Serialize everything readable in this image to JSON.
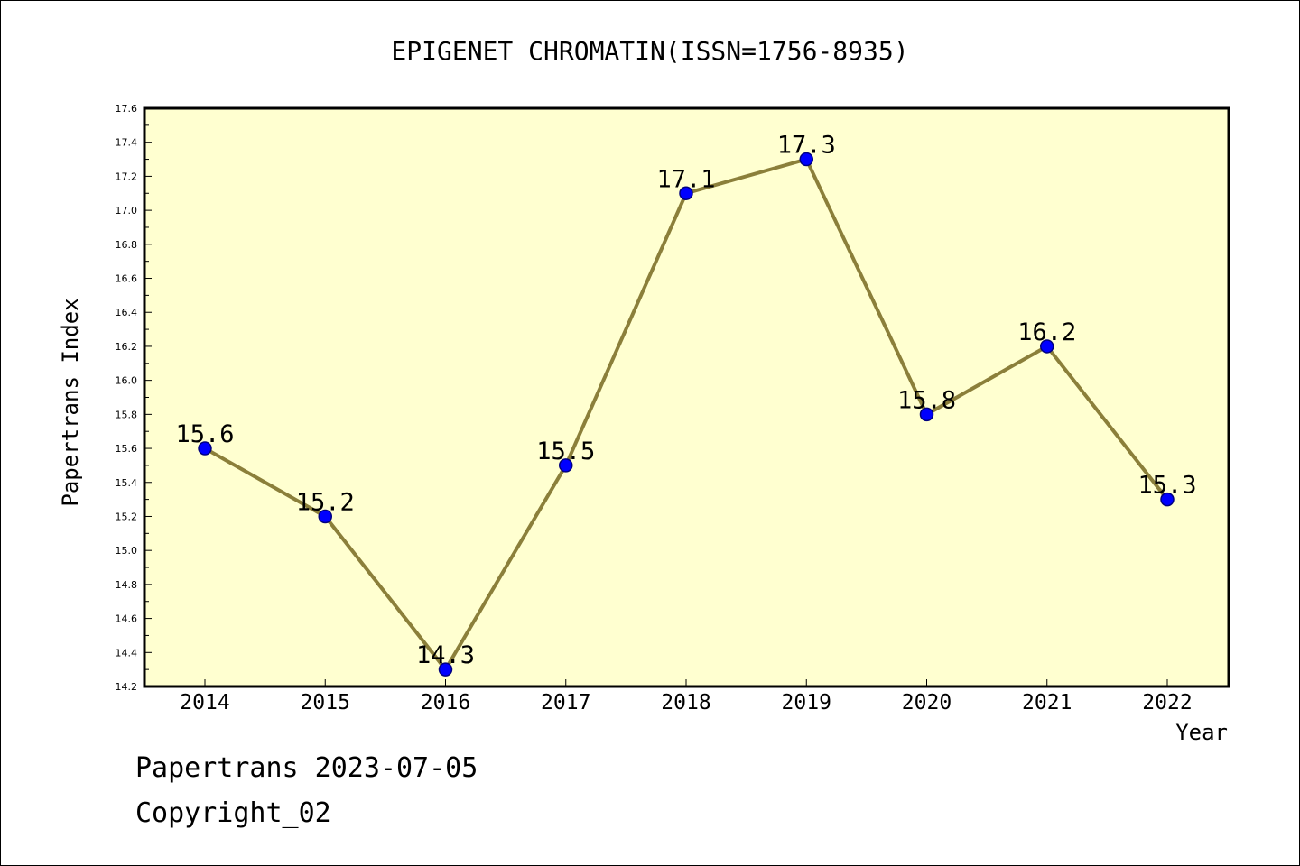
{
  "chart_data": {
    "type": "line",
    "title": "EPIGENET CHROMATIN(ISSN=1756-8935)",
    "xlabel": "Year",
    "ylabel": "Papertrans Index",
    "categories": [
      "2014",
      "2015",
      "2016",
      "2017",
      "2018",
      "2019",
      "2020",
      "2021",
      "2022"
    ],
    "series": [
      {
        "values": [
          15.6,
          15.2,
          14.3,
          15.5,
          17.1,
          17.3,
          15.8,
          16.2,
          15.3
        ],
        "data_labels": [
          "15.6",
          "15.2",
          "14.3",
          "15.5",
          "17.1",
          "17.3",
          "15.8",
          "16.2",
          "15.3"
        ]
      }
    ],
    "ylim": [
      14.2,
      17.6
    ],
    "yticks": [
      "14.2",
      "14.4",
      "14.6",
      "14.8",
      "15.0",
      "15.2",
      "15.4",
      "15.6",
      "15.8",
      "16.0",
      "16.2",
      "16.4",
      "16.6",
      "16.8",
      "17.0",
      "17.2",
      "17.4",
      "17.6"
    ],
    "grid": false,
    "legend": "none",
    "colors": {
      "plot_background": "#ffffd0",
      "line": "#8b7f3a",
      "marker_fill": "#0000ff",
      "marker_edge": "#000080",
      "axis": "#000000"
    }
  },
  "footer": {
    "date_line": "Papertrans 2023-07-05",
    "copyright_line": "Copyright_02"
  }
}
